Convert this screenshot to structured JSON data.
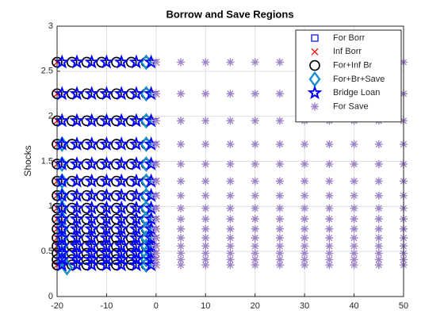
{
  "chart_data": {
    "type": "scatter",
    "title": "Borrow and Save Regions",
    "ylabel": "Shocks",
    "xlim": [
      -20,
      50
    ],
    "ylim": [
      0,
      3
    ],
    "xticks": [
      -20,
      -10,
      0,
      10,
      20,
      30,
      40,
      50
    ],
    "yticks": [
      0,
      0.5,
      1,
      1.5,
      2,
      2.5,
      3
    ],
    "grid": true,
    "legend": "northeast",
    "series": [
      {
        "name": "For Borr",
        "marker": "square",
        "color": "#0000ff",
        "x": [
          -1,
          -1,
          -1
        ],
        "y": [
          0.56,
          0.48,
          0.41
        ]
      },
      {
        "name": "Inf Borr",
        "marker": "x",
        "color": "#ff0000",
        "x": [
          -20,
          0,
          -20,
          0,
          -20,
          0,
          -20,
          0,
          -20,
          0,
          -20,
          0,
          -20,
          0,
          -20,
          0,
          -20,
          0,
          -20,
          0,
          -20,
          0,
          -20,
          0,
          -20,
          0,
          -20,
          0,
          -20,
          0
        ],
        "y": [
          2.6,
          2.6,
          2.25,
          2.25,
          1.95,
          1.95,
          1.69,
          1.69,
          1.47,
          1.47,
          1.28,
          1.28,
          1.12,
          1.12,
          0.98,
          0.98,
          0.86,
          0.86,
          0.75,
          0.75,
          0.65,
          0.65,
          0.56,
          0.56,
          0.48,
          0.48,
          0.41,
          0.41,
          0.35,
          0.35
        ]
      },
      {
        "name": "For+Inf Br",
        "marker": "circle",
        "color": "#000000",
        "x": [
          -20,
          -17,
          -14,
          -11,
          -8,
          -5,
          -2,
          -20,
          -17,
          -14,
          -11,
          -8,
          -5,
          -2,
          -20,
          -17,
          -14,
          -11,
          -8,
          -5,
          -2,
          -20,
          -17,
          -14,
          -11,
          -8,
          -5,
          -2,
          -20,
          -17,
          -14,
          -11,
          -8,
          -5,
          -2,
          -20,
          -17,
          -14,
          -11,
          -8,
          -5,
          -2,
          -20,
          -17,
          -14,
          -11,
          -8,
          -5,
          -2,
          -20,
          -17,
          -14,
          -11,
          -8,
          -5,
          -2,
          -20,
          -17,
          -14,
          -11,
          -8,
          -5,
          -2,
          -20,
          -17,
          -14,
          -11,
          -8,
          -5,
          -2,
          -20,
          -17,
          -14,
          -11,
          -8,
          -5,
          -2,
          -20,
          -17,
          -14,
          -11,
          -8,
          -5,
          -2,
          -20,
          -17,
          -14,
          -11,
          -8,
          -5,
          -2,
          -20,
          -17,
          -14,
          -11,
          -8,
          -5,
          -2,
          -20,
          -17,
          -14,
          -11,
          -8,
          -5,
          -2
        ],
        "y": [
          2.6,
          2.6,
          2.6,
          2.6,
          2.6,
          2.6,
          2.6,
          2.25,
          2.25,
          2.25,
          2.25,
          2.25,
          2.25,
          2.25,
          1.95,
          1.95,
          1.95,
          1.95,
          1.95,
          1.95,
          1.95,
          1.69,
          1.69,
          1.69,
          1.69,
          1.69,
          1.69,
          1.69,
          1.47,
          1.47,
          1.47,
          1.47,
          1.47,
          1.47,
          1.47,
          1.28,
          1.28,
          1.28,
          1.28,
          1.28,
          1.28,
          1.28,
          1.12,
          1.12,
          1.12,
          1.12,
          1.12,
          1.12,
          1.12,
          0.98,
          0.98,
          0.98,
          0.98,
          0.98,
          0.98,
          0.98,
          0.86,
          0.86,
          0.86,
          0.86,
          0.86,
          0.86,
          0.86,
          0.75,
          0.75,
          0.75,
          0.75,
          0.75,
          0.75,
          0.75,
          0.65,
          0.65,
          0.65,
          0.65,
          0.65,
          0.65,
          0.65,
          0.56,
          0.56,
          0.56,
          0.56,
          0.56,
          0.56,
          0.56,
          0.48,
          0.48,
          0.48,
          0.48,
          0.48,
          0.48,
          0.48,
          0.41,
          0.41,
          0.41,
          0.41,
          0.41,
          0.41,
          0.41,
          0.35,
          0.35,
          0.35,
          0.35,
          0.35,
          0.35,
          0.35
        ]
      },
      {
        "name": "For+Br+Save",
        "marker": "diamond",
        "color": "#1a8fc8",
        "x": [
          -2,
          -2,
          -2,
          -2,
          -2,
          -2,
          -2,
          -2,
          -2,
          -2,
          -2,
          -2,
          -2,
          -2,
          -2,
          -19,
          -19,
          -19,
          -19,
          -19,
          -19,
          -19,
          -19,
          -19,
          -19,
          -19,
          -18
        ],
        "y": [
          2.6,
          2.25,
          1.95,
          1.69,
          1.47,
          1.28,
          1.12,
          0.98,
          0.86,
          0.75,
          0.65,
          0.56,
          0.48,
          0.41,
          0.35,
          1.69,
          1.47,
          1.28,
          1.12,
          0.98,
          0.86,
          0.75,
          0.65,
          0.56,
          0.48,
          0.41,
          0.32
        ]
      },
      {
        "name": "Bridge Loan",
        "marker": "star",
        "color": "#0000ff",
        "x": [
          -19,
          -16,
          -13,
          -10,
          -7,
          -4,
          -1,
          -19,
          -16,
          -13,
          -10,
          -7,
          -4,
          -1,
          -19,
          -16,
          -13,
          -10,
          -7,
          -4,
          -1,
          -19,
          -16,
          -13,
          -10,
          -7,
          -4,
          -1,
          -19,
          -16,
          -13,
          -10,
          -7,
          -4,
          -1,
          -19,
          -16,
          -13,
          -10,
          -7,
          -4,
          -1,
          -19,
          -16,
          -13,
          -10,
          -7,
          -4,
          -1,
          -19,
          -16,
          -13,
          -10,
          -7,
          -4,
          -1,
          -19,
          -16,
          -13,
          -10,
          -7,
          -4,
          -1,
          -19,
          -16,
          -13,
          -10,
          -7,
          -4,
          -1,
          -19,
          -16,
          -13,
          -10,
          -7,
          -4,
          -1,
          -19,
          -16,
          -13,
          -10,
          -7,
          -4,
          -1,
          -19,
          -16,
          -13,
          -10,
          -7,
          -4,
          -1,
          -19,
          -16,
          -13,
          -10,
          -7,
          -4,
          -1,
          -19,
          -16,
          -13,
          -10,
          -7,
          -4,
          -1
        ],
        "y": [
          2.6,
          2.6,
          2.6,
          2.6,
          2.6,
          2.6,
          2.6,
          2.25,
          2.25,
          2.25,
          2.25,
          2.25,
          2.25,
          2.25,
          1.95,
          1.95,
          1.95,
          1.95,
          1.95,
          1.95,
          1.95,
          1.69,
          1.69,
          1.69,
          1.69,
          1.69,
          1.69,
          1.69,
          1.47,
          1.47,
          1.47,
          1.47,
          1.47,
          1.47,
          1.47,
          1.28,
          1.28,
          1.28,
          1.28,
          1.28,
          1.28,
          1.28,
          1.12,
          1.12,
          1.12,
          1.12,
          1.12,
          1.12,
          1.12,
          0.98,
          0.98,
          0.98,
          0.98,
          0.98,
          0.98,
          0.98,
          0.86,
          0.86,
          0.86,
          0.86,
          0.86,
          0.86,
          0.86,
          0.75,
          0.75,
          0.75,
          0.75,
          0.75,
          0.75,
          0.75,
          0.65,
          0.65,
          0.65,
          0.65,
          0.65,
          0.65,
          0.65,
          0.56,
          0.56,
          0.56,
          0.56,
          0.56,
          0.56,
          0.56,
          0.48,
          0.48,
          0.48,
          0.48,
          0.48,
          0.48,
          0.48,
          0.41,
          0.41,
          0.41,
          0.41,
          0.41,
          0.41,
          0.41,
          0.35,
          0.35,
          0.35,
          0.35,
          0.35,
          0.35,
          0.35
        ]
      },
      {
        "name": "For Save",
        "marker": "asterisk",
        "color": "#9e86c9",
        "x": [
          0,
          5,
          10,
          15,
          20,
          25,
          30,
          35,
          40,
          45,
          50,
          0,
          5,
          10,
          15,
          20,
          25,
          30,
          35,
          40,
          45,
          50,
          0,
          5,
          10,
          15,
          20,
          25,
          30,
          35,
          40,
          45,
          50,
          0,
          5,
          10,
          15,
          20,
          25,
          30,
          35,
          40,
          45,
          50,
          0,
          5,
          10,
          15,
          20,
          25,
          30,
          35,
          40,
          45,
          50,
          0,
          5,
          10,
          15,
          20,
          25,
          30,
          35,
          40,
          45,
          50,
          0,
          5,
          10,
          15,
          20,
          25,
          30,
          35,
          40,
          45,
          50,
          0,
          5,
          10,
          15,
          20,
          25,
          30,
          35,
          40,
          45,
          50,
          0,
          5,
          10,
          15,
          20,
          25,
          30,
          35,
          40,
          45,
          50,
          0,
          5,
          10,
          15,
          20,
          25,
          30,
          35,
          40,
          45,
          50,
          0,
          5,
          10,
          15,
          20,
          25,
          30,
          35,
          40,
          45,
          50,
          0,
          5,
          10,
          15,
          20,
          25,
          30,
          35,
          40,
          45,
          50,
          0,
          5,
          10,
          15,
          20,
          25,
          30,
          35,
          40,
          45,
          50,
          0,
          5,
          10,
          15,
          20,
          25,
          30,
          35,
          40,
          45,
          50,
          0,
          5,
          10,
          15,
          20,
          25,
          30,
          35,
          40,
          45,
          50
        ],
        "y": [
          2.6,
          2.6,
          2.6,
          2.6,
          2.6,
          2.6,
          2.6,
          2.6,
          2.6,
          2.6,
          2.6,
          2.25,
          2.25,
          2.25,
          2.25,
          2.25,
          2.25,
          2.25,
          2.25,
          2.25,
          2.25,
          2.25,
          1.95,
          1.95,
          1.95,
          1.95,
          1.95,
          1.95,
          1.95,
          1.95,
          1.95,
          1.95,
          1.95,
          1.69,
          1.69,
          1.69,
          1.69,
          1.69,
          1.69,
          1.69,
          1.69,
          1.69,
          1.69,
          1.69,
          1.47,
          1.47,
          1.47,
          1.47,
          1.47,
          1.47,
          1.47,
          1.47,
          1.47,
          1.47,
          1.47,
          1.28,
          1.28,
          1.28,
          1.28,
          1.28,
          1.28,
          1.28,
          1.28,
          1.28,
          1.28,
          1.28,
          1.12,
          1.12,
          1.12,
          1.12,
          1.12,
          1.12,
          1.12,
          1.12,
          1.12,
          1.12,
          1.12,
          0.98,
          0.98,
          0.98,
          0.98,
          0.98,
          0.98,
          0.98,
          0.98,
          0.98,
          0.98,
          0.98,
          0.86,
          0.86,
          0.86,
          0.86,
          0.86,
          0.86,
          0.86,
          0.86,
          0.86,
          0.86,
          0.86,
          0.75,
          0.75,
          0.75,
          0.75,
          0.75,
          0.75,
          0.75,
          0.75,
          0.75,
          0.75,
          0.75,
          0.65,
          0.65,
          0.65,
          0.65,
          0.65,
          0.65,
          0.65,
          0.65,
          0.65,
          0.65,
          0.65,
          0.56,
          0.56,
          0.56,
          0.56,
          0.56,
          0.56,
          0.56,
          0.56,
          0.56,
          0.56,
          0.56,
          0.48,
          0.48,
          0.48,
          0.48,
          0.48,
          0.48,
          0.48,
          0.48,
          0.48,
          0.48,
          0.48,
          0.41,
          0.41,
          0.41,
          0.41,
          0.41,
          0.41,
          0.41,
          0.41,
          0.41,
          0.41,
          0.41,
          0.35,
          0.35,
          0.35,
          0.35,
          0.35,
          0.35,
          0.35,
          0.35,
          0.35,
          0.35,
          0.35
        ]
      }
    ]
  }
}
